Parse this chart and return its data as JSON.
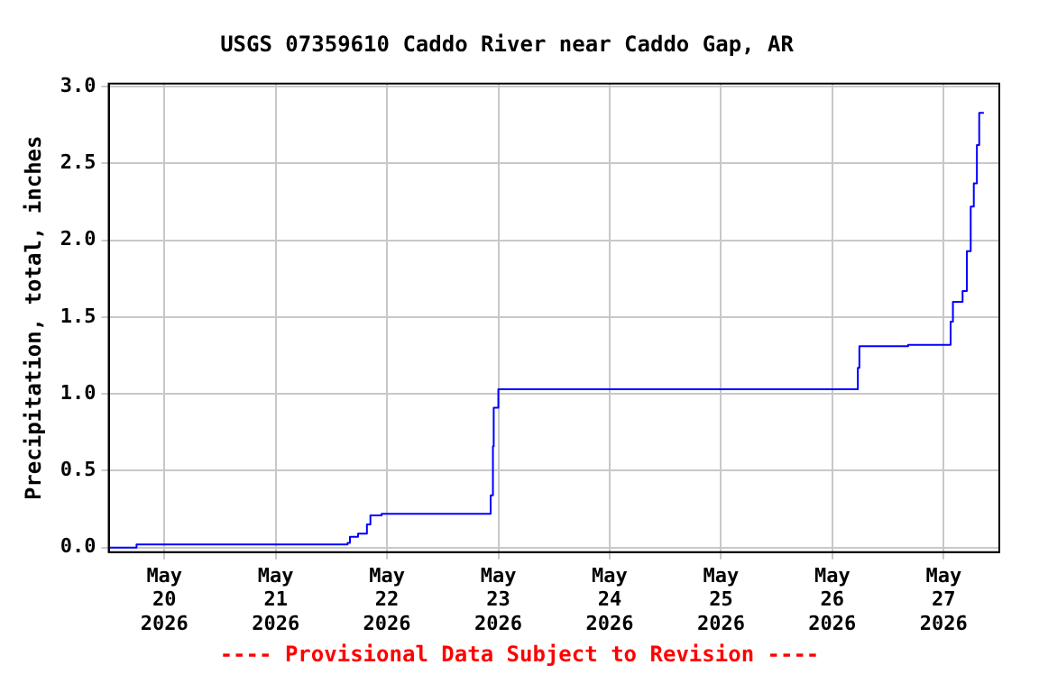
{
  "chart_data": {
    "type": "step",
    "title": "USGS 07359610 Caddo River near Caddo Gap, AR",
    "ylabel": "Precipitation, total, inches",
    "annotations": [
      "---- Provisional Data Subject to Revision ----"
    ],
    "series": [
      {
        "color": "#0000ff",
        "x": [
          "2026-05-19T12:00",
          "2026-05-19T18:00",
          "2026-05-21T15:30",
          "2026-05-21T16:00",
          "2026-05-21T17:45",
          "2026-05-21T19:40",
          "2026-05-21T20:25",
          "2026-05-21T22:50",
          "2026-05-22T22:20",
          "2026-05-22T22:50",
          "2026-05-22T23:00",
          "2026-05-23T00:00",
          "2026-05-26T05:30",
          "2026-05-26T05:50",
          "2026-05-26T16:20",
          "2026-05-27T01:30",
          "2026-05-27T02:00",
          "2026-05-27T04:05",
          "2026-05-27T05:00",
          "2026-05-27T05:50",
          "2026-05-27T06:30",
          "2026-05-27T07:10",
          "2026-05-27T07:40",
          "2026-05-27T08:40"
        ],
        "values": [
          0.0,
          0.02,
          0.03,
          0.07,
          0.09,
          0.15,
          0.21,
          0.22,
          0.34,
          0.66,
          0.91,
          1.03,
          1.17,
          1.31,
          1.32,
          1.47,
          1.6,
          1.67,
          1.93,
          2.22,
          2.37,
          2.62,
          2.83,
          2.83
        ]
      }
    ],
    "xlim": [
      "2026-05-19T12:00",
      "2026-05-27T12:00"
    ],
    "xticks": [
      {
        "value": "2026-05-20",
        "label": "May\n20\n2026"
      },
      {
        "value": "2026-05-21",
        "label": "May\n21\n2026"
      },
      {
        "value": "2026-05-22",
        "label": "May\n22\n2026"
      },
      {
        "value": "2026-05-23",
        "label": "May\n23\n2026"
      },
      {
        "value": "2026-05-24",
        "label": "May\n24\n2026"
      },
      {
        "value": "2026-05-25",
        "label": "May\n25\n2026"
      },
      {
        "value": "2026-05-26",
        "label": "May\n26\n2026"
      },
      {
        "value": "2026-05-27",
        "label": "May\n27\n2026"
      }
    ],
    "ylim": [
      -0.03,
      3.02
    ],
    "yticks": [
      {
        "value": 0,
        "label": "0.0"
      },
      {
        "value": 0.5,
        "label": "0.5"
      },
      {
        "value": 1,
        "label": "1.0"
      },
      {
        "value": 1.5,
        "label": "1.5"
      },
      {
        "value": 2,
        "label": "2.0"
      },
      {
        "value": 2.5,
        "label": "2.5"
      },
      {
        "value": 3,
        "label": "3.0"
      }
    ],
    "grid": true,
    "legend": false
  }
}
